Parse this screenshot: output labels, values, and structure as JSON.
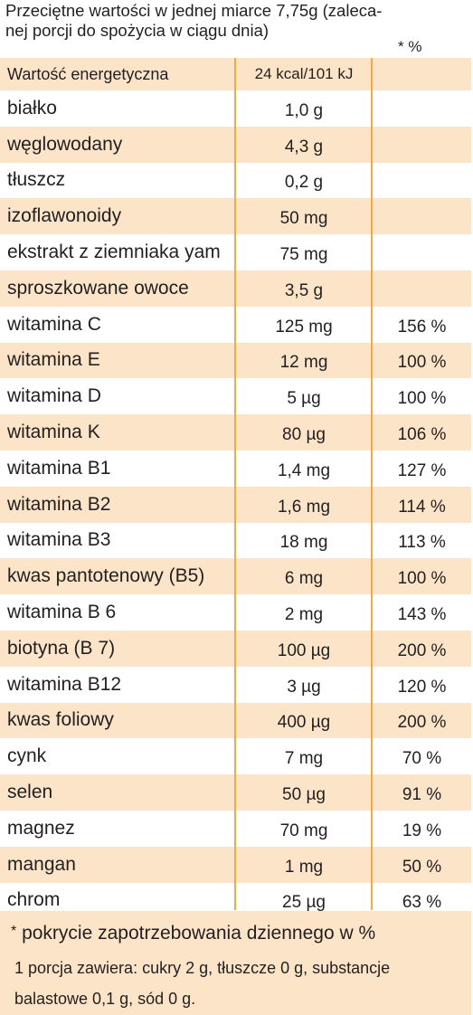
{
  "header": {
    "line1": "Przeciętne wartości w jednej miarce 7,75g (zaleca-",
    "line2": "nej porcji do spożycia w ciągu dnia)",
    "pct_header": "* %"
  },
  "rows": [
    {
      "name": "Wartość energetyczna",
      "amount": "24 kcal/101 kJ",
      "pct": ""
    },
    {
      "name": "białko",
      "amount": "1,0 g",
      "pct": ""
    },
    {
      "name": "węglowodany",
      "amount": "4,3 g",
      "pct": ""
    },
    {
      "name": "tłuszcz",
      "amount": "0,2 g",
      "pct": ""
    },
    {
      "name": "izoflawonoidy",
      "amount": "50 mg",
      "pct": ""
    },
    {
      "name": "ekstrakt z ziemniaka yam",
      "amount": "75 mg",
      "pct": ""
    },
    {
      "name": "sproszkowane owoce",
      "amount": "3,5 g",
      "pct": ""
    },
    {
      "name": "witamina C",
      "amount": "125 mg",
      "pct": "156 %"
    },
    {
      "name": "witamina E",
      "amount": "12 mg",
      "pct": "100 %"
    },
    {
      "name": "witamina D",
      "amount": "5 µg",
      "pct": "100 %"
    },
    {
      "name": "witamina K",
      "amount": "80 µg",
      "pct": "106 %"
    },
    {
      "name": "witamina B1",
      "amount": "1,4 mg",
      "pct": "127 %"
    },
    {
      "name": "witamina B2",
      "amount": "1,6 mg",
      "pct": "114 %"
    },
    {
      "name": "witamina B3",
      "amount": "18 mg",
      "pct": "113 %"
    },
    {
      "name": "kwas pantotenowy (B5)",
      "amount": "6 mg",
      "pct": "100 %"
    },
    {
      "name": "witamina B 6",
      "amount": "2 mg",
      "pct": "143 %"
    },
    {
      "name": "biotyna  (B 7)",
      "amount": "100 µg",
      "pct": "200 %"
    },
    {
      "name": "witamina B12",
      "amount": "3 µg",
      "pct": "120 %"
    },
    {
      "name": "kwas foliowy",
      "amount": "400 µg",
      "pct": "200 %"
    },
    {
      "name": "cynk",
      "amount": "7 mg",
      "pct": "70 %"
    },
    {
      "name": "selen",
      "amount": "50 µg",
      "pct": "91 %"
    },
    {
      "name": "magnez",
      "amount": "70 mg",
      "pct": "19 %"
    },
    {
      "name": "mangan",
      "amount": "1 mg",
      "pct": "50 %"
    },
    {
      "name": "chrom",
      "amount": "25 µg",
      "pct": "63 %"
    }
  ],
  "footer": {
    "star": "*",
    "footnote": "pokrycie zapotrzebowania dziennego w %",
    "line1": "1 porcja zawiera: cukry 2 g, tłuszcze 0 g, substancje",
    "line2": "balastowe 0,1 g, sód 0 g."
  },
  "colors": {
    "shade": "#fce4c8",
    "divider": "#f5a942",
    "text": "#231f20"
  }
}
